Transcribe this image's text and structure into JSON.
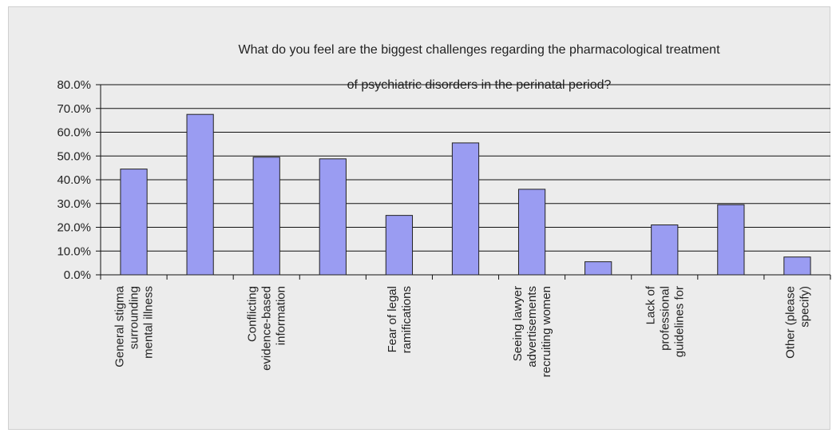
{
  "chart_data": {
    "type": "bar",
    "title": "What do you feel are the biggest challenges regarding the pharmacological treatment of psychiatric disorders in the perinatal period?",
    "title_lines": [
      "What do you feel are the biggest challenges regarding the pharmacological treatment",
      "of psychiatric disorders in the perinatal period?"
    ],
    "xlabel": "",
    "ylabel": "",
    "ylim": [
      0,
      0.8
    ],
    "y_ticks": [
      0.0,
      0.1,
      0.2,
      0.3,
      0.4,
      0.5,
      0.6,
      0.7,
      0.8
    ],
    "y_tick_labels": [
      "0.0%",
      "10.0%",
      "20.0%",
      "30.0%",
      "40.0%",
      "50.0%",
      "60.0%",
      "70.0%",
      "80.0%"
    ],
    "grid": true,
    "legend": false,
    "bar_color": "#9a9cf2",
    "categories": [
      [
        "General stigma",
        "surrounding",
        "mental illness"
      ],
      [],
      [
        "Conflicting",
        "evidence-based",
        "information"
      ],
      [],
      [
        "Fear of legal",
        "ramifications"
      ],
      [],
      [
        "Seeing lawyer",
        "advertisements",
        "recruiting women"
      ],
      [],
      [
        "Lack of",
        "professional",
        "guidelines for"
      ],
      [],
      [
        "Other (please",
        "specify)"
      ]
    ],
    "values": [
      0.445,
      0.675,
      0.495,
      0.488,
      0.25,
      0.555,
      0.36,
      0.055,
      0.21,
      0.295,
      0.075
    ]
  }
}
